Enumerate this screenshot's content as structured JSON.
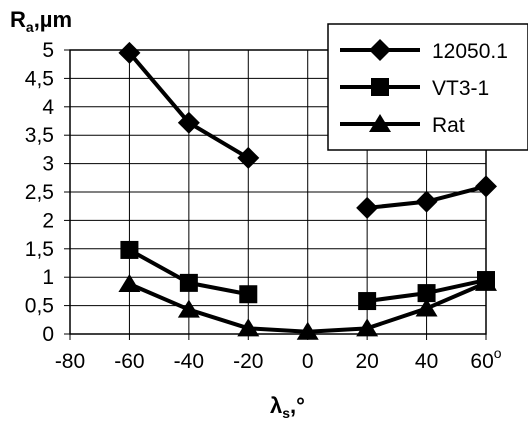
{
  "chart_data": {
    "type": "line",
    "ylabel": {
      "main": "R",
      "sub": "a",
      "tail": ",µm"
    },
    "xlabel": {
      "main": "λ",
      "sub": "s",
      "tail": ",°"
    },
    "x_ticks": [
      "-80",
      "-60",
      "-40",
      "-20",
      "0",
      "20",
      "40",
      "60"
    ],
    "x_tick_last_suffix": "o",
    "y_ticks": [
      "0",
      "0,5",
      "1",
      "1,5",
      "2",
      "2,5",
      "3",
      "3,5",
      "4",
      "4,5",
      "5"
    ],
    "xlim": [
      -80,
      60
    ],
    "ylim": [
      0,
      5
    ],
    "grid": true,
    "legend_position": "top-right",
    "series": [
      {
        "name": "12050.1",
        "marker": "diamond",
        "segments": [
          [
            [
              -60,
              4.95
            ],
            [
              -40,
              3.72
            ],
            [
              -20,
              3.1
            ]
          ],
          [
            [
              20,
              2.22
            ],
            [
              40,
              2.33
            ],
            [
              60,
              2.6
            ]
          ]
        ]
      },
      {
        "name": "VT3-1",
        "marker": "square",
        "segments": [
          [
            [
              -60,
              1.48
            ],
            [
              -40,
              0.9
            ],
            [
              -20,
              0.7
            ]
          ],
          [
            [
              20,
              0.58
            ],
            [
              40,
              0.72
            ],
            [
              60,
              0.95
            ]
          ]
        ]
      },
      {
        "name": "Rat",
        "marker": "triangle",
        "segments": [
          [
            [
              -60,
              0.88
            ],
            [
              -40,
              0.43
            ],
            [
              -20,
              0.1
            ],
            [
              0,
              0.04
            ],
            [
              20,
              0.1
            ],
            [
              40,
              0.45
            ],
            [
              60,
              0.9
            ]
          ]
        ]
      }
    ]
  }
}
